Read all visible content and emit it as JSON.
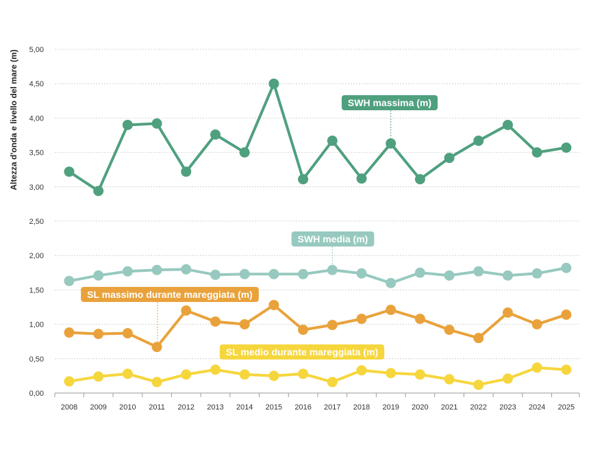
{
  "chart_data": {
    "type": "line",
    "ylabel": "Altezza d'onda e livello del mare (m)",
    "ylim": [
      0,
      5
    ],
    "yticks": [
      "0,00",
      "0,50",
      "1,00",
      "1,50",
      "2,00",
      "2,50",
      "3,00",
      "3,50",
      "4,00",
      "4,50",
      "5,00"
    ],
    "grid": true,
    "categories": [
      "2008",
      "2009",
      "2010",
      "2011",
      "2012",
      "2013",
      "2014",
      "2015",
      "2016",
      "2017",
      "2018",
      "2019",
      "2020",
      "2021",
      "2022",
      "2023",
      "2024",
      "2025"
    ],
    "series": [
      {
        "name": "SWH massima (m)",
        "color": "#4fa07f",
        "values": [
          3.22,
          2.94,
          3.9,
          3.92,
          3.22,
          3.76,
          3.5,
          4.5,
          3.11,
          3.67,
          3.12,
          3.63,
          3.11,
          3.42,
          3.67,
          3.9,
          3.5,
          3.57
        ]
      },
      {
        "name": "SWH media (m)",
        "color": "#97c9bf",
        "values": [
          1.63,
          1.71,
          1.77,
          1.79,
          1.8,
          1.72,
          1.73,
          1.73,
          1.73,
          1.79,
          1.74,
          1.6,
          1.75,
          1.71,
          1.77,
          1.71,
          1.74,
          1.82
        ]
      },
      {
        "name": "SL massimo durante mareggiata (m)",
        "color": "#e9a23b",
        "values": [
          0.88,
          0.86,
          0.87,
          0.67,
          1.2,
          1.04,
          1.0,
          1.28,
          0.92,
          0.99,
          1.08,
          1.21,
          1.08,
          0.92,
          0.8,
          1.17,
          1.0,
          1.14
        ]
      },
      {
        "name": "SL medio durante mareggiata (m)",
        "color": "#f6d63d",
        "values": [
          0.17,
          0.24,
          0.28,
          0.16,
          0.27,
          0.34,
          0.27,
          0.25,
          0.28,
          0.16,
          0.33,
          0.29,
          0.27,
          0.2,
          0.12,
          0.21,
          0.37,
          0.34
        ]
      }
    ]
  }
}
